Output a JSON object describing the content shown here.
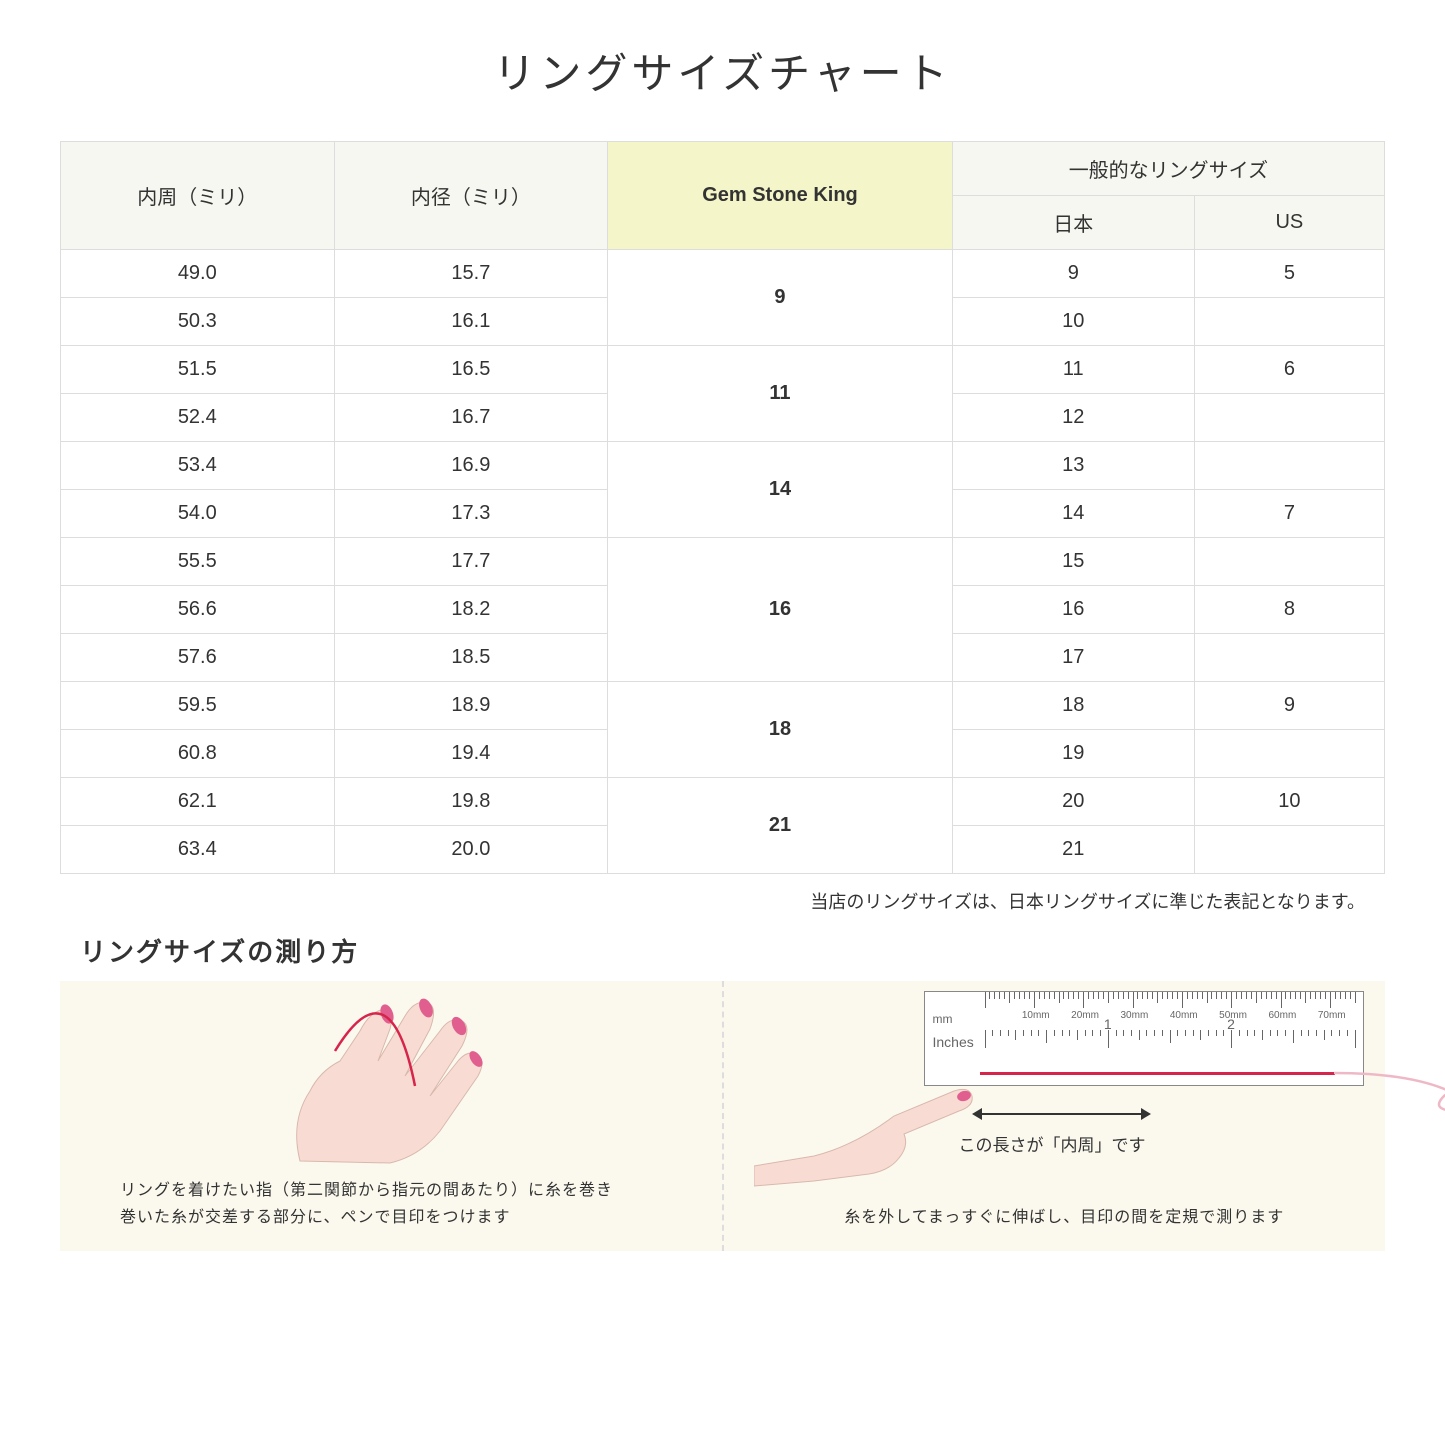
{
  "title": "リングサイズチャート",
  "table": {
    "header_row1": {
      "col1": "内周（ミリ）",
      "col2": "内径（ミリ）",
      "col3": "Gem Stone King",
      "col4": "一般的なリングサイズ"
    },
    "header_row2": {
      "col4a": "日本",
      "col4b": "US"
    },
    "groups": [
      {
        "gsk": "9",
        "rows": [
          {
            "c": "49.0",
            "d": "15.7",
            "jp": "9",
            "us": "5"
          },
          {
            "c": "50.3",
            "d": "16.1",
            "jp": "10",
            "us": ""
          }
        ]
      },
      {
        "gsk": "11",
        "rows": [
          {
            "c": "51.5",
            "d": "16.5",
            "jp": "11",
            "us": "6"
          },
          {
            "c": "52.4",
            "d": "16.7",
            "jp": "12",
            "us": ""
          }
        ]
      },
      {
        "gsk": "14",
        "rows": [
          {
            "c": "53.4",
            "d": "16.9",
            "jp": "13",
            "us": ""
          },
          {
            "c": "54.0",
            "d": "17.3",
            "jp": "14",
            "us": "7"
          }
        ]
      },
      {
        "gsk": "16",
        "rows": [
          {
            "c": "55.5",
            "d": "17.7",
            "jp": "15",
            "us": ""
          },
          {
            "c": "56.6",
            "d": "18.2",
            "jp": "16",
            "us": "8"
          },
          {
            "c": "57.6",
            "d": "18.5",
            "jp": "17",
            "us": ""
          }
        ]
      },
      {
        "gsk": "18",
        "rows": [
          {
            "c": "59.5",
            "d": "18.9",
            "jp": "18",
            "us": "9"
          },
          {
            "c": "60.8",
            "d": "19.4",
            "jp": "19",
            "us": ""
          }
        ]
      },
      {
        "gsk": "21",
        "rows": [
          {
            "c": "62.1",
            "d": "19.8",
            "jp": "20",
            "us": "10"
          },
          {
            "c": "63.4",
            "d": "20.0",
            "jp": "21",
            "us": ""
          }
        ]
      }
    ]
  },
  "note": "当店のリングサイズは、日本リングサイズに準じた表記となります。",
  "howto": {
    "title": "リングサイズの測り方",
    "left_caption": "リングを着けたい指（第二関節から指元の間あたり）に糸を巻き\n巻いた糸が交差する部分に、ペンで目印をつけます",
    "right_caption": "糸を外してまっすぐに伸ばし、目印の間を定規で測ります",
    "ruler": {
      "mm_label": "mm",
      "in_label": "Inches",
      "mm_marks": [
        "10mm",
        "20mm",
        "30mm",
        "40mm",
        "50mm",
        "60mm",
        "70mm"
      ],
      "in_marks": [
        "1",
        "2"
      ]
    },
    "arrow_label": "この長さが「内周」です"
  },
  "colors": {
    "header_bg": "#f7f7f2",
    "highlight_bg": "#f5f5ca",
    "border": "#dddddd",
    "howto_bg": "#fbf9ee",
    "skin": "#f8dcd3",
    "nail": "#e15f8f",
    "thread": "#d6244a"
  }
}
